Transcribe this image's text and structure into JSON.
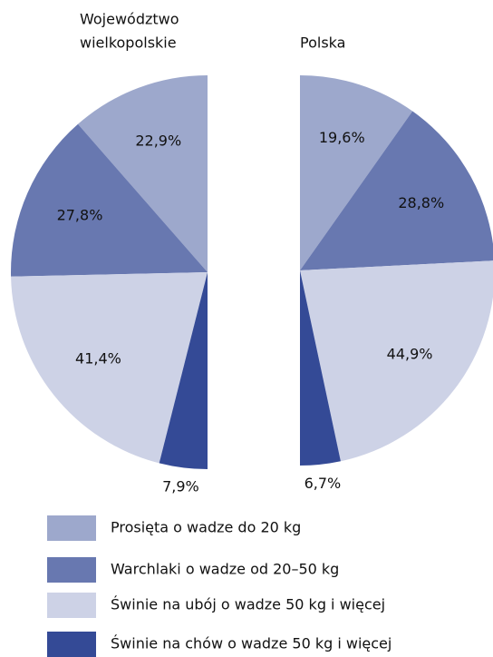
{
  "chart_data": [
    {
      "type": "pie",
      "title": [
        "Województwo",
        "wielkopolskie"
      ],
      "values": [
        22.9,
        27.8,
        41.4,
        7.9
      ],
      "value_labels": [
        "22,9%",
        "27,8%",
        "41,4%",
        "7,9%"
      ]
    },
    {
      "type": "pie",
      "title": [
        "Polska"
      ],
      "values": [
        19.6,
        28.8,
        44.9,
        6.7
      ],
      "value_labels": [
        "19,6%",
        "28,8%",
        "44,9%",
        "6,7%"
      ]
    }
  ],
  "legend": {
    "labels": [
      "Prosięta o wadze do 20 kg",
      "Warchlaki o wadze od 20–50 kg",
      "Świnie na ubój o wadze 50 kg i więcej",
      "Świnie na chów o wadze 50 kg i więcej"
    ],
    "colors": [
      "#9da8cc",
      "#6878b0",
      "#cdd2e6",
      "#344a96"
    ]
  }
}
